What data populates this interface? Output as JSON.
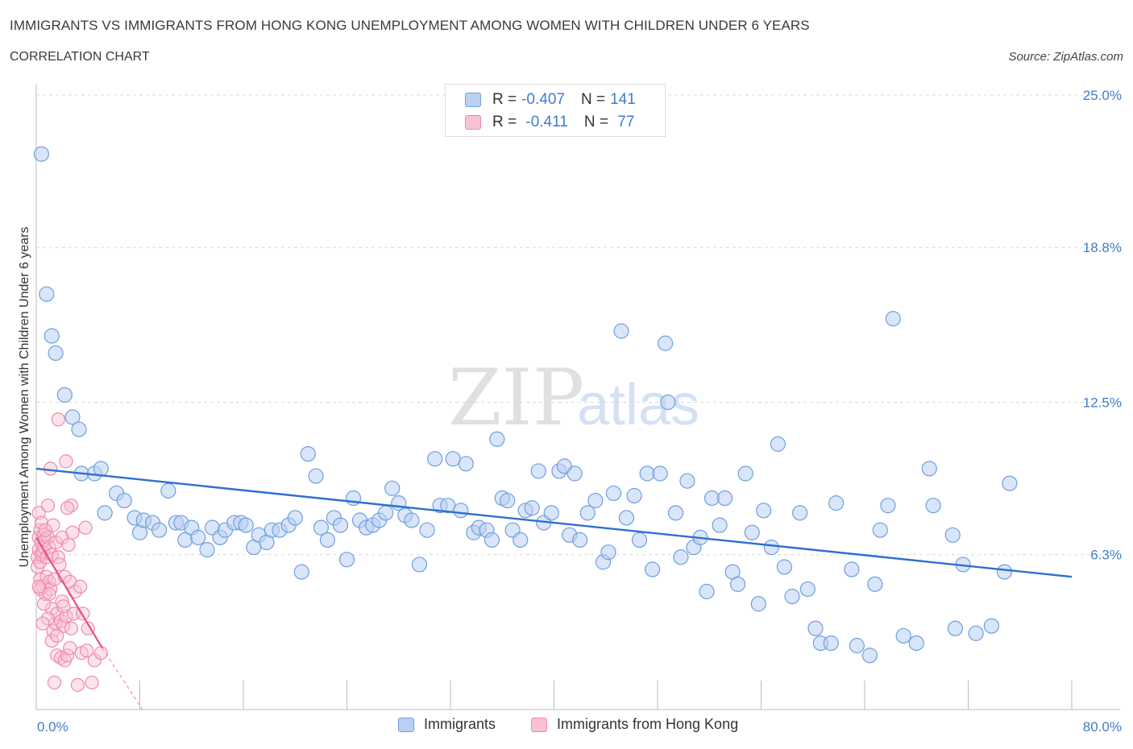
{
  "title": "IMMIGRANTS VS IMMIGRANTS FROM HONG KONG UNEMPLOYMENT AMONG WOMEN WITH CHILDREN UNDER 6 YEARS",
  "subtitle": "CORRELATION CHART",
  "source": "Source: ZipAtlas.com",
  "watermark": {
    "zip": "ZIP",
    "atlas": "atlas"
  },
  "legend": {
    "rows": [
      {
        "r_label": "R = ",
        "r_value": "-0.407",
        "n_label": "N = ",
        "n_value": "141"
      },
      {
        "r_label": "R = ",
        "r_value": " -0.411",
        "n_label": "N = ",
        "n_value": " 77"
      }
    ]
  },
  "colors": {
    "immigrants_fill": "#b9d0f3",
    "immigrants_stroke": "#6f9fe0",
    "immigrants_line": "#2d6fd0",
    "hk_fill": "#f8c2d3",
    "hk_stroke": "#ef8aab",
    "hk_line": "#e8507f",
    "axis_text": "#3f7dcc",
    "grid": "#d9d9d9"
  },
  "chart_data": {
    "type": "scatter",
    "title": "IMMIGRANTS VS IMMIGRANTS FROM HONG KONG UNEMPLOYMENT AMONG WOMEN WITH CHILDREN UNDER 6 YEARS",
    "xlabel": "",
    "ylabel": "Unemployment Among Women with Children Under 6 years",
    "xlim": [
      0,
      80
    ],
    "ylim": [
      0,
      25
    ],
    "x_tick_labels": [
      "0.0%",
      "80.0%"
    ],
    "y_ticks": [
      6.3,
      12.5,
      18.8,
      25.0
    ],
    "y_tick_labels": [
      "6.3%",
      "12.5%",
      "18.8%",
      "25.0%"
    ],
    "grid": true,
    "legend_position": "bottom",
    "series": [
      {
        "name": "Immigrants",
        "R": -0.407,
        "N": 141,
        "trend": {
          "x": [
            0,
            80
          ],
          "y": [
            9.8,
            5.4
          ]
        },
        "points": [
          [
            0.4,
            22.6
          ],
          [
            0.8,
            16.9
          ],
          [
            1.2,
            15.2
          ],
          [
            1.5,
            14.5
          ],
          [
            2.2,
            12.8
          ],
          [
            2.8,
            11.9
          ],
          [
            3.3,
            11.4
          ],
          [
            3.5,
            9.6
          ],
          [
            4.5,
            9.6
          ],
          [
            5.0,
            9.8
          ],
          [
            5.3,
            8.0
          ],
          [
            6.2,
            8.8
          ],
          [
            6.8,
            8.5
          ],
          [
            7.6,
            7.8
          ],
          [
            8.0,
            7.2
          ],
          [
            8.3,
            7.7
          ],
          [
            9.0,
            7.6
          ],
          [
            9.5,
            7.3
          ],
          [
            10.2,
            8.9
          ],
          [
            10.8,
            7.6
          ],
          [
            11.2,
            7.6
          ],
          [
            11.5,
            6.9
          ],
          [
            12.0,
            7.4
          ],
          [
            12.5,
            7.0
          ],
          [
            13.2,
            6.5
          ],
          [
            13.6,
            7.4
          ],
          [
            14.2,
            7.0
          ],
          [
            14.6,
            7.3
          ],
          [
            15.3,
            7.6
          ],
          [
            15.8,
            7.6
          ],
          [
            16.2,
            7.5
          ],
          [
            16.8,
            6.6
          ],
          [
            17.2,
            7.1
          ],
          [
            17.8,
            6.8
          ],
          [
            18.2,
            7.3
          ],
          [
            18.8,
            7.3
          ],
          [
            19.5,
            7.5
          ],
          [
            20.0,
            7.8
          ],
          [
            20.5,
            5.6
          ],
          [
            21.0,
            10.4
          ],
          [
            21.6,
            9.5
          ],
          [
            22.0,
            7.4
          ],
          [
            22.5,
            6.9
          ],
          [
            23.0,
            7.8
          ],
          [
            23.5,
            7.5
          ],
          [
            24.0,
            6.1
          ],
          [
            24.5,
            8.6
          ],
          [
            25.0,
            7.7
          ],
          [
            25.5,
            7.4
          ],
          [
            26.0,
            7.5
          ],
          [
            26.5,
            7.7
          ],
          [
            27.0,
            8.0
          ],
          [
            27.5,
            9.0
          ],
          [
            28.0,
            8.4
          ],
          [
            28.5,
            7.9
          ],
          [
            29.0,
            7.7
          ],
          [
            29.6,
            5.9
          ],
          [
            30.2,
            7.3
          ],
          [
            30.8,
            10.2
          ],
          [
            31.2,
            8.3
          ],
          [
            31.8,
            8.3
          ],
          [
            32.2,
            10.2
          ],
          [
            32.8,
            8.1
          ],
          [
            33.2,
            10.0
          ],
          [
            33.8,
            7.2
          ],
          [
            34.2,
            7.4
          ],
          [
            34.8,
            7.3
          ],
          [
            35.2,
            6.9
          ],
          [
            35.6,
            11.0
          ],
          [
            36.0,
            8.6
          ],
          [
            36.4,
            8.5
          ],
          [
            36.8,
            7.3
          ],
          [
            37.4,
            6.9
          ],
          [
            37.8,
            8.1
          ],
          [
            38.3,
            8.2
          ],
          [
            38.8,
            9.7
          ],
          [
            39.2,
            7.6
          ],
          [
            39.8,
            8.0
          ],
          [
            40.4,
            9.7
          ],
          [
            40.8,
            9.9
          ],
          [
            41.2,
            7.1
          ],
          [
            41.6,
            9.6
          ],
          [
            42.0,
            6.9
          ],
          [
            42.6,
            8.0
          ],
          [
            43.2,
            8.5
          ],
          [
            43.8,
            6.0
          ],
          [
            44.2,
            6.4
          ],
          [
            44.6,
            8.8
          ],
          [
            45.2,
            15.4
          ],
          [
            45.6,
            7.8
          ],
          [
            46.2,
            8.7
          ],
          [
            46.6,
            6.9
          ],
          [
            47.2,
            9.6
          ],
          [
            47.6,
            5.7
          ],
          [
            48.2,
            9.6
          ],
          [
            48.6,
            14.9
          ],
          [
            48.8,
            12.5
          ],
          [
            49.4,
            8.0
          ],
          [
            49.8,
            6.2
          ],
          [
            50.3,
            9.3
          ],
          [
            50.8,
            6.6
          ],
          [
            51.3,
            7.0
          ],
          [
            51.8,
            4.8
          ],
          [
            52.2,
            8.6
          ],
          [
            52.8,
            7.5
          ],
          [
            53.2,
            8.6
          ],
          [
            53.8,
            5.6
          ],
          [
            54.2,
            5.1
          ],
          [
            54.8,
            9.6
          ],
          [
            55.3,
            7.2
          ],
          [
            55.8,
            4.3
          ],
          [
            56.2,
            8.1
          ],
          [
            56.8,
            6.6
          ],
          [
            57.3,
            10.8
          ],
          [
            57.8,
            5.8
          ],
          [
            58.4,
            4.6
          ],
          [
            59.0,
            8.0
          ],
          [
            59.6,
            4.9
          ],
          [
            60.2,
            3.3
          ],
          [
            60.6,
            2.7
          ],
          [
            61.4,
            2.7
          ],
          [
            61.8,
            8.4
          ],
          [
            63.0,
            5.7
          ],
          [
            63.4,
            2.6
          ],
          [
            64.4,
            2.2
          ],
          [
            64.8,
            5.1
          ],
          [
            65.2,
            7.3
          ],
          [
            65.8,
            8.3
          ],
          [
            66.2,
            15.9
          ],
          [
            67.0,
            3.0
          ],
          [
            68.0,
            2.7
          ],
          [
            69.0,
            9.8
          ],
          [
            69.3,
            8.3
          ],
          [
            70.8,
            7.1
          ],
          [
            71.0,
            3.3
          ],
          [
            71.6,
            5.9
          ],
          [
            72.6,
            3.1
          ],
          [
            73.8,
            3.4
          ],
          [
            74.8,
            5.6
          ],
          [
            75.2,
            9.2
          ]
        ]
      },
      {
        "name": "Immigrants from Hong Kong",
        "R": -0.411,
        "N": 77,
        "trend": {
          "x": [
            0,
            5.1
          ],
          "y": [
            7.0,
            2.5
          ]
        },
        "trend_dashed": {
          "x": [
            5.1,
            8.2
          ],
          "y": [
            2.5,
            0
          ]
        },
        "points": [
          [
            0.1,
            6.2
          ],
          [
            0.1,
            5.8
          ],
          [
            0.2,
            7.0
          ],
          [
            0.2,
            6.5
          ],
          [
            0.2,
            8.0
          ],
          [
            0.3,
            7.3
          ],
          [
            0.3,
            6.0
          ],
          [
            0.3,
            5.3
          ],
          [
            0.4,
            6.8
          ],
          [
            0.4,
            6.3
          ],
          [
            0.4,
            7.6
          ],
          [
            0.5,
            5.0
          ],
          [
            0.5,
            6.4
          ],
          [
            0.6,
            7.1
          ],
          [
            0.6,
            6.6
          ],
          [
            0.7,
            4.7
          ],
          [
            0.7,
            6.9
          ],
          [
            0.8,
            5.4
          ],
          [
            0.8,
            6.2
          ],
          [
            0.9,
            7.0
          ],
          [
            0.9,
            8.3
          ],
          [
            1.0,
            5.2
          ],
          [
            1.0,
            6.6
          ],
          [
            1.1,
            9.8
          ],
          [
            1.1,
            4.9
          ],
          [
            1.2,
            6.3
          ],
          [
            1.2,
            4.1
          ],
          [
            1.3,
            7.5
          ],
          [
            1.3,
            3.2
          ],
          [
            1.4,
            5.3
          ],
          [
            1.4,
            1.1
          ],
          [
            1.5,
            6.8
          ],
          [
            1.5,
            3.5
          ],
          [
            1.6,
            3.9
          ],
          [
            1.6,
            2.2
          ],
          [
            1.7,
            11.8
          ],
          [
            1.7,
            6.2
          ],
          [
            1.8,
            5.9
          ],
          [
            1.9,
            3.6
          ],
          [
            1.9,
            2.1
          ],
          [
            2.0,
            7.0
          ],
          [
            2.0,
            4.4
          ],
          [
            2.1,
            3.4
          ],
          [
            2.2,
            5.4
          ],
          [
            2.2,
            2.0
          ],
          [
            2.3,
            10.1
          ],
          [
            2.3,
            3.8
          ],
          [
            2.4,
            2.2
          ],
          [
            2.5,
            6.7
          ],
          [
            2.6,
            5.2
          ],
          [
            2.6,
            2.5
          ],
          [
            2.7,
            8.3
          ],
          [
            2.7,
            3.3
          ],
          [
            2.8,
            7.2
          ],
          [
            2.9,
            3.9
          ],
          [
            3.0,
            4.8
          ],
          [
            3.2,
            1.0
          ],
          [
            3.4,
            5.0
          ],
          [
            3.5,
            2.3
          ],
          [
            3.6,
            3.9
          ],
          [
            3.8,
            7.4
          ],
          [
            3.9,
            2.4
          ],
          [
            4.0,
            3.3
          ],
          [
            4.3,
            1.1
          ],
          [
            4.5,
            2.0
          ],
          [
            5.0,
            2.3
          ],
          [
            0.3,
            4.9
          ],
          [
            0.6,
            4.3
          ],
          [
            0.9,
            3.7
          ],
          [
            1.2,
            2.8
          ],
          [
            0.5,
            3.5
          ],
          [
            1.6,
            3.0
          ],
          [
            2.1,
            4.2
          ],
          [
            0.2,
            5.0
          ],
          [
            0.7,
            7.3
          ],
          [
            1.0,
            4.7
          ],
          [
            2.4,
            8.2
          ]
        ]
      }
    ]
  },
  "bottom_legend": {
    "immigrants": "Immigrants",
    "hk": "Immigrants from Hong Kong"
  }
}
